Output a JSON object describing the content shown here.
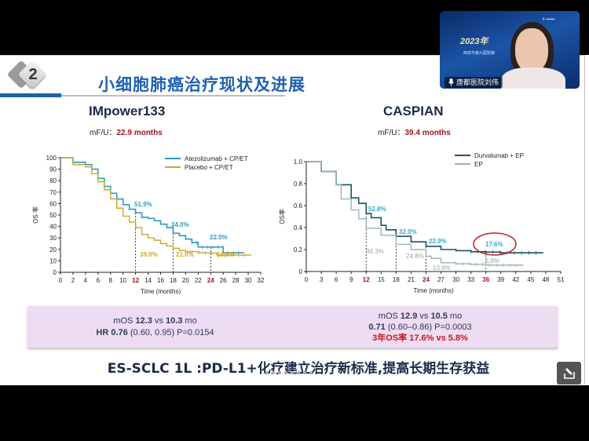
{
  "slide": {
    "section_number": "2",
    "title": "小细胞肺癌治疗现状及进展",
    "left_trial": {
      "name": "IMpower133",
      "mfu_label": "mF/U：",
      "mfu_value": "22.9 months"
    },
    "right_trial": {
      "name": "CASPIAN",
      "mfu_label": "mF/U：",
      "mfu_value": "39.4 months"
    },
    "summary_left": {
      "line1_pre": "mOS ",
      "line1_a": "12.3",
      "line1_mid": " vs ",
      "line1_b": "10.3",
      "line1_post": " mo",
      "line2_pre": "HR ",
      "line2_hr": "0.76",
      "line2_post": " (0.60, 0.95) P=0.0154"
    },
    "summary_right": {
      "line1_pre": "mOS ",
      "line1_a": "12.9",
      "line1_mid": " vs ",
      "line1_b": "10.5",
      "line1_post": " mo",
      "line2_hr": "0.71",
      "line2_post": " (0.60–0.86) P=0.0003",
      "line3": "3年OS率 17.6% vs 5.8%"
    },
    "conclusion": "ES-SCLC 1L :PD-L1+化疗建立治疗新标准,提高长期生存获益"
  },
  "video": {
    "speaker_name": "唐都医院刘伟",
    "banner_year": "2023年",
    "banner_sub": "西安市第九医院第",
    "mic_icon": "microphone-icon"
  },
  "controls": {
    "edit_icon": "edit-pencil-icon",
    "page_dots": 8
  },
  "colors": {
    "title_blue": "#1e62b0",
    "mfu_red": "#a3141b",
    "atezo": "#2a9bc0",
    "placebo": "#c9a82a",
    "durva": "#17545f",
    "ep": "#97b3ba",
    "label_cyan": "#33a8c8",
    "highlight_red": "#c0202a",
    "summary_bg": "#eedcf3"
  },
  "chart_data": [
    {
      "type": "line",
      "title": "IMpower133",
      "xlabel": "Time (months)",
      "ylabel": "OS 率",
      "xlim": [
        0,
        32
      ],
      "ylim": [
        0,
        100
      ],
      "xticks": [
        0,
        2,
        4,
        6,
        8,
        10,
        12,
        14,
        16,
        18,
        20,
        22,
        24,
        26,
        28,
        30,
        32
      ],
      "yticks": [
        0,
        10,
        20,
        30,
        40,
        50,
        60,
        70,
        80,
        90,
        100
      ],
      "highlighted_xticks": [
        12,
        24
      ],
      "legend": [
        "Atezolizumab + CP/ET",
        "Placebo + CP/ET"
      ],
      "legend_position": "top-right",
      "series": [
        {
          "name": "Atezolizumab + CP/ET",
          "color": "#2a9bc0",
          "x": [
            0,
            2,
            4,
            5,
            6,
            7,
            8,
            9,
            10,
            11,
            12,
            13,
            14,
            15,
            16,
            17,
            18,
            19,
            20,
            21,
            22,
            23,
            24,
            25,
            26,
            27,
            28,
            29.3
          ],
          "y": [
            100,
            96,
            94,
            90,
            82,
            75,
            69,
            64,
            59,
            55,
            51.9,
            48,
            47,
            45,
            42,
            39,
            34,
            32,
            29,
            26,
            22,
            22,
            22,
            22,
            17,
            17,
            17,
            17
          ]
        },
        {
          "name": "Placebo + CP/ET",
          "color": "#c9a82a",
          "x": [
            0,
            2,
            4,
            5,
            6,
            7,
            8,
            9,
            10,
            11,
            12,
            13,
            14,
            15,
            16,
            17,
            18,
            19,
            20,
            21,
            22,
            23,
            24,
            25,
            26,
            28,
            30.5
          ],
          "y": [
            100,
            94,
            92,
            86,
            79,
            72,
            64,
            56,
            49,
            44,
            39.0,
            33,
            30,
            28,
            25,
            23,
            21,
            19,
            18,
            18,
            17,
            17,
            16.8,
            15,
            15,
            15,
            15
          ]
        }
      ],
      "annotations": [
        {
          "x": 12,
          "label_top": "51.9%",
          "label_bottom": "39.0%"
        },
        {
          "x": 18,
          "label_top": "34.0%",
          "label_bottom": "21.0%"
        },
        {
          "x": 24,
          "label_top": "22.0%",
          "label_bottom": "16.8%"
        }
      ]
    },
    {
      "type": "line",
      "title": "CASPIAN",
      "xlabel": "Time (months)",
      "ylabel": "OS率",
      "xlim": [
        0,
        51
      ],
      "ylim": [
        0,
        1.0
      ],
      "xticks": [
        0,
        3,
        6,
        9,
        12,
        15,
        18,
        21,
        24,
        27,
        30,
        33,
        36,
        39,
        42,
        45,
        48,
        51
      ],
      "yticks": [
        0,
        0.2,
        0.4,
        0.6,
        0.8,
        1.0
      ],
      "highlighted_xticks": [
        12,
        24,
        36
      ],
      "legend": [
        "Durvalumab + EP",
        "EP"
      ],
      "legend_position": "top-right",
      "series": [
        {
          "name": "Durvalumab + EP",
          "color": "#17545f",
          "x": [
            0,
            3,
            6,
            9,
            10.5,
            12,
            13,
            15,
            16,
            18,
            21,
            24,
            27,
            30,
            33,
            36,
            39,
            42,
            45,
            47.5
          ],
          "y": [
            1.0,
            0.91,
            0.79,
            0.67,
            0.62,
            0.528,
            0.49,
            0.42,
            0.38,
            0.32,
            0.27,
            0.229,
            0.2,
            0.19,
            0.18,
            0.176,
            0.17,
            0.17,
            0.17,
            0.17
          ]
        },
        {
          "name": "EP",
          "color": "#97b3ba",
          "x": [
            0,
            3,
            6,
            7,
            9,
            10.5,
            12,
            15,
            18,
            21,
            24,
            25,
            27,
            30,
            33,
            36,
            39,
            42,
            43.5
          ],
          "y": [
            1.0,
            0.91,
            0.79,
            0.66,
            0.56,
            0.48,
            0.393,
            0.33,
            0.248,
            0.2,
            0.139,
            0.12,
            0.08,
            0.07,
            0.065,
            0.058,
            0.058,
            0.058,
            0.058
          ]
        }
      ],
      "annotations": [
        {
          "x": 12,
          "label_top": "52.8%",
          "label_bottom": "39.3%"
        },
        {
          "x": 18,
          "label_top": "32.0%",
          "label_bottom": "24.8%"
        },
        {
          "x": 24,
          "label_top": "22.9%",
          "label_bottom": "13.9%"
        },
        {
          "x": 36,
          "label_top": "17.6%",
          "label_bottom": "5.8%",
          "circled": true
        }
      ]
    }
  ]
}
